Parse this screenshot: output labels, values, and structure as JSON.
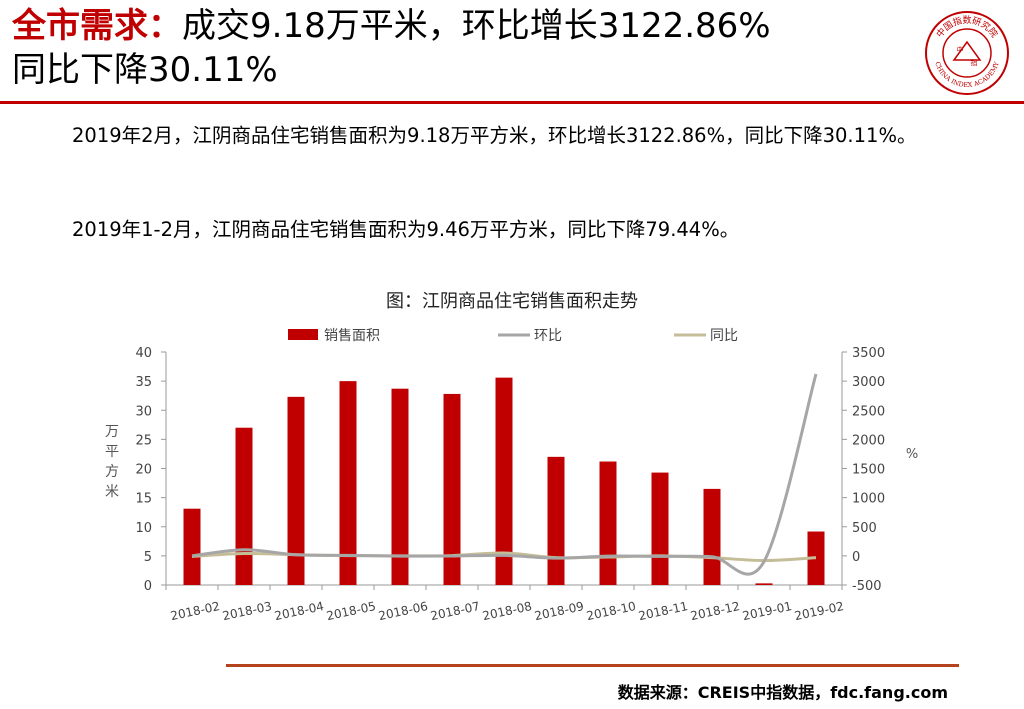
{
  "heading": {
    "highlight": "全市需求：",
    "line1": "成交9.18万平米，环比增长3122.86%",
    "line2": "同比下降30.11%"
  },
  "logo": {
    "top_text": "中国指数研究院",
    "center_left": "中",
    "center_right": "指",
    "bottom_text": "CHINA INDEX ACADEMY"
  },
  "paragraphs": [
    "2019年2月，江阴商品住宅销售面积为9.18万平方米，环比增长3122.86%，同比下降30.11%。",
    "2019年1-2月，江阴商品住宅销售面积为9.46万平方米，同比下降79.44%。"
  ],
  "chart_title": "图：江阴商品住宅销售面积走势",
  "source": "数据来源：CREIS中指数据，fdc.fang.com",
  "colors": {
    "accent": "#c00000",
    "bar": "#c00000",
    "mom_line": "#a6a6a6",
    "yoy_line": "#c4bd97",
    "rule": "#b4421d"
  },
  "chart_data": {
    "type": "bar",
    "categories": [
      "2018-02",
      "2018-03",
      "2018-04",
      "2018-05",
      "2018-06",
      "2018-07",
      "2018-08",
      "2018-09",
      "2018-10",
      "2018-11",
      "2018-12",
      "2019-01",
      "2019-02"
    ],
    "series": [
      {
        "name": "销售面积",
        "type": "bar",
        "axis": "left",
        "values": [
          13.1,
          27,
          32.3,
          35,
          33.7,
          32.8,
          35.6,
          22,
          21.2,
          19.3,
          16.5,
          0.28,
          9.18
        ]
      },
      {
        "name": "环比",
        "type": "line",
        "axis": "right",
        "values": [
          0,
          106,
          19.6,
          8.4,
          -3.7,
          -2.7,
          8.5,
          -38.2,
          -3.6,
          -9,
          -14.5,
          -98.3,
          3122.86
        ]
      },
      {
        "name": "同比",
        "type": "line",
        "axis": "right",
        "values": [
          -10,
          40,
          20,
          5,
          0,
          5,
          50,
          -30,
          -20,
          0,
          -30,
          -80,
          -30.11
        ]
      }
    ],
    "ylabel": "万平方米",
    "y2label": "%",
    "ylim": [
      0,
      40
    ],
    "yticks": [
      0,
      5,
      10,
      15,
      20,
      25,
      30,
      35,
      40
    ],
    "y2lim": [
      -500,
      3500
    ],
    "y2ticks": [
      -500,
      0,
      500,
      1000,
      1500,
      2000,
      2500,
      3000,
      3500
    ],
    "legend": "top",
    "grid": false
  }
}
